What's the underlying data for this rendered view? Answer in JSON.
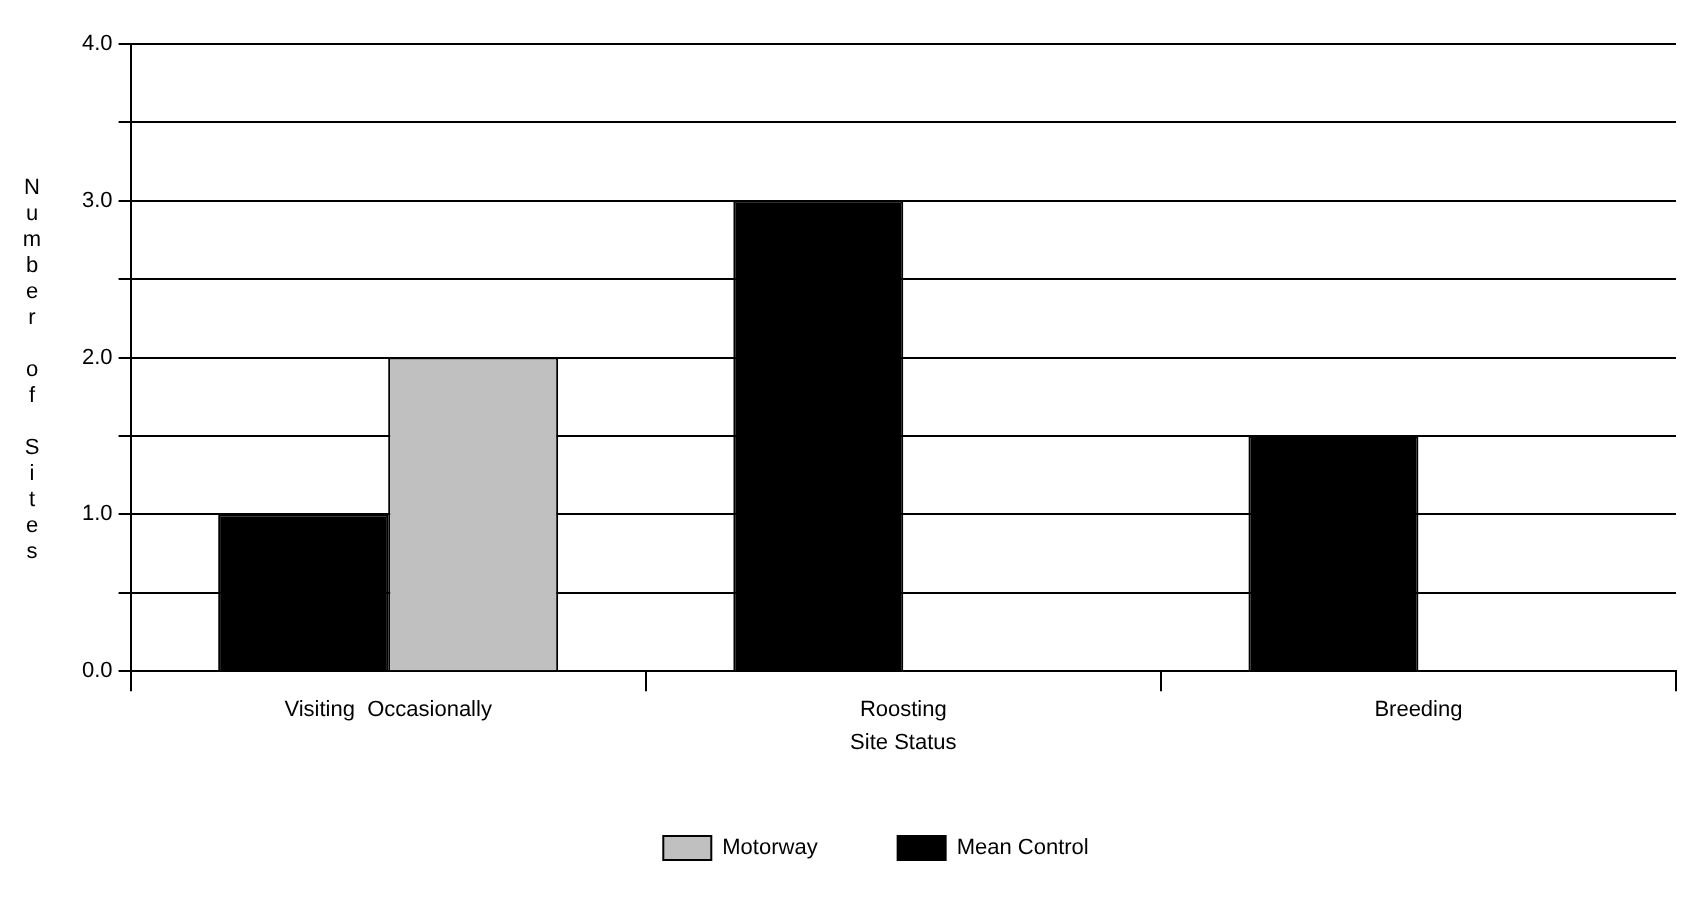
{
  "chart_data": {
    "type": "bar",
    "xlabel": "Site Status",
    "ylabel": "Number of Sites",
    "categories": [
      "Visiting  Occasionally",
      "Roosting",
      "Breeding"
    ],
    "series": [
      {
        "name": "Mean Control",
        "color": "#000000",
        "values": [
          1.0,
          3.0,
          1.5
        ]
      },
      {
        "name": "Motorway",
        "color": "#c0c0c0",
        "values": [
          2.0,
          0,
          0
        ]
      }
    ],
    "ylim": [
      0,
      4
    ],
    "yticks": [
      {
        "value": 0,
        "label": "0.0"
      },
      {
        "value": 0.5,
        "label": null
      },
      {
        "value": 1,
        "label": "1.0"
      },
      {
        "value": 1.5,
        "label": null
      },
      {
        "value": 2,
        "label": "2.0"
      },
      {
        "value": 2.5,
        "label": null
      },
      {
        "value": 3,
        "label": "3.0"
      },
      {
        "value": 3.5,
        "label": null
      },
      {
        "value": 4,
        "label": "4.0"
      }
    ],
    "grid": "y",
    "legend": "bottom"
  }
}
